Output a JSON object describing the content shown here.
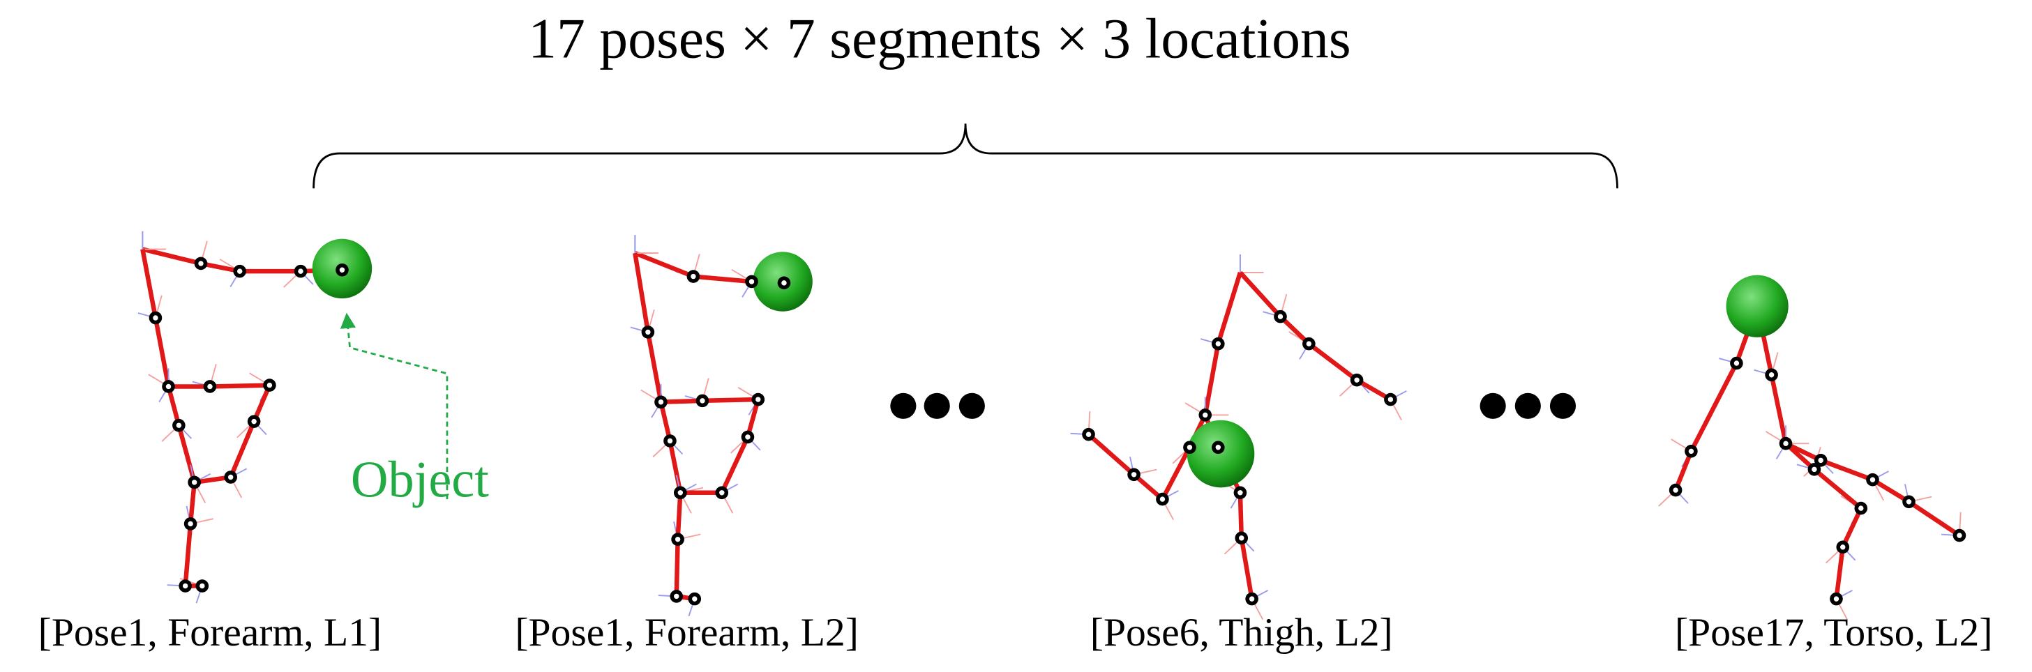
{
  "header": {
    "title": "17 poses × 7 segments × 3 locations"
  },
  "annotation": {
    "label": "Object"
  },
  "panels": [
    {
      "caption": "[Pose1, Forearm, L1]"
    },
    {
      "caption": "[Pose1, Forearm, L2]"
    },
    {
      "caption": "[Pose6, Thigh, L2]"
    },
    {
      "caption": "[Pose17, Torso, L2]"
    }
  ]
}
